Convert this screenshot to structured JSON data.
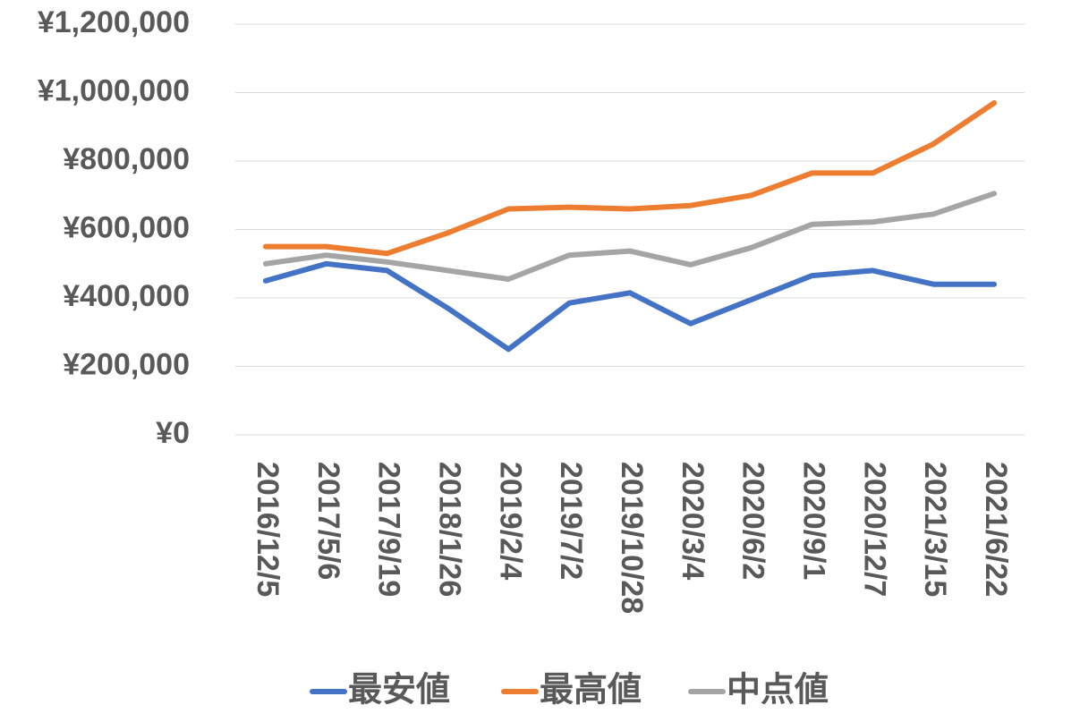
{
  "chart_data": {
    "type": "line",
    "categories": [
      "2016/12/5",
      "2017/5/6",
      "2017/9/19",
      "2018/1/26",
      "2019/2/4",
      "2019/7/2",
      "2019/10/28",
      "2020/3/4",
      "2020/6/2",
      "2020/9/1",
      "2020/12/7",
      "2021/3/15",
      "2021/6/22"
    ],
    "series": [
      {
        "name": "最安値",
        "color": "#4472C4",
        "values": [
          450000,
          500000,
          480000,
          370000,
          250000,
          385000,
          415000,
          325000,
          395000,
          465000,
          480000,
          440000,
          440000
        ]
      },
      {
        "name": "最高値",
        "color": "#ED7D31",
        "values": [
          550000,
          550000,
          530000,
          590000,
          660000,
          665000,
          660000,
          670000,
          700000,
          765000,
          765000,
          850000,
          970000
        ]
      },
      {
        "name": "中点値",
        "color": "#A5A5A5",
        "values": [
          500000,
          525000,
          505000,
          480000,
          455000,
          525000,
          537000,
          497000,
          547000,
          615000,
          622000,
          645000,
          705000
        ]
      }
    ],
    "y_ticks": [
      "¥0",
      "¥200,000",
      "¥400,000",
      "¥600,000",
      "¥800,000",
      "¥1,000,000",
      "¥1,200,000"
    ],
    "ylim": [
      0,
      1200000
    ],
    "grid": true,
    "legend_position": "bottom"
  }
}
